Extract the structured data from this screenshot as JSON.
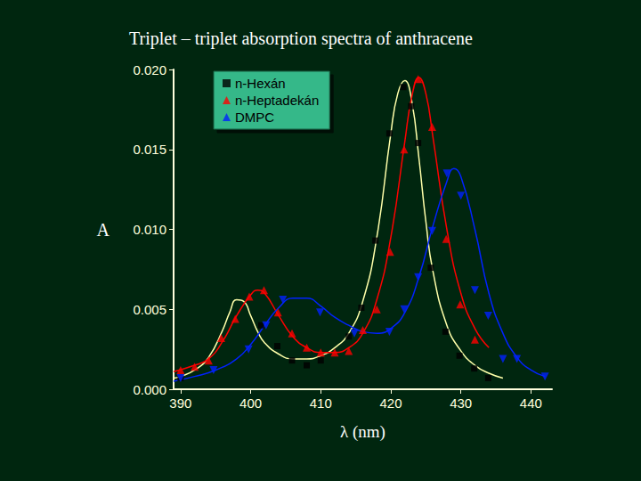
{
  "chart_data": {
    "type": "scatter",
    "title": "Triplet – triplet absorption spectra of anthracene",
    "x_label": "λ (nm)",
    "y_label": "A",
    "xlim": [
      389,
      443
    ],
    "xticks": [
      390,
      400,
      410,
      420,
      430,
      440
    ],
    "ylim": [
      0,
      0.02
    ],
    "yticks": [
      {
        "value": 0,
        "label": "0.000"
      },
      {
        "value": 0.005,
        "label": "0.005"
      },
      {
        "value": 0.01,
        "label": "0.010"
      },
      {
        "value": 0.015,
        "label": "0.015"
      },
      {
        "value": 0.02,
        "label": "0.020"
      }
    ],
    "grid": false,
    "legend": "top",
    "series": [
      {
        "name": "n-Hexán",
        "color": "#000000",
        "marker": "square",
        "x": [
          390,
          401.5,
          403.8,
          405.9,
          408,
          410,
          414,
          415.8,
          417.8,
          419.8,
          421.8,
          422.9,
          423.9,
          425.7,
          427.8,
          429.8,
          431.9,
          433.9
        ],
        "values": [
          0.0007,
          0.004,
          0.0027,
          0.0018,
          0.0015,
          0.0018,
          0.0033,
          0.0051,
          0.0093,
          0.016,
          0.0189,
          0.0177,
          0.0154,
          0.0076,
          0.0036,
          0.0021,
          0.0013,
          0.0007
        ],
        "fit": {
          "color": "#ffffaa",
          "line_style": "solid",
          "x": [
            389,
            390,
            392,
            394,
            396,
            397,
            398,
            399,
            400,
            401,
            402,
            404,
            406,
            408,
            410,
            412,
            414,
            416,
            418,
            420,
            421,
            422,
            423,
            424,
            425,
            426,
            428,
            430,
            432,
            434,
            436
          ],
          "values": [
            0.0007,
            0.0008,
            0.0012,
            0.002,
            0.0037,
            0.0048,
            0.0056,
            0.0055,
            0.0046,
            0.0036,
            0.0029,
            0.0022,
            0.0019,
            0.0019,
            0.0021,
            0.0026,
            0.0035,
            0.0055,
            0.0095,
            0.016,
            0.0185,
            0.0193,
            0.018,
            0.0145,
            0.0105,
            0.0074,
            0.004,
            0.0024,
            0.0015,
            0.001,
            0.0007
          ]
        }
      },
      {
        "name": "n-Heptadekán",
        "color": "#ff0000",
        "marker": "triangle",
        "x": [
          390,
          392,
          394,
          395.8,
          397.8,
          399.8,
          401.9,
          403.9,
          405.9,
          408,
          410,
          412,
          414,
          416,
          418,
          419.9,
          421.9,
          423.9,
          425.9,
          427.9,
          429.9,
          432
        ],
        "values": [
          0.0012,
          0.0014,
          0.0018,
          0.0032,
          0.0044,
          0.0058,
          0.0062,
          0.0048,
          0.0035,
          0.0026,
          0.0023,
          0.0023,
          0.0024,
          0.0037,
          0.005,
          0.0086,
          0.015,
          0.0194,
          0.0164,
          0.0094,
          0.0053,
          0.0031
        ],
        "fit": {
          "color": "#ff0000",
          "line_style": "solid",
          "x": [
            389,
            392,
            394,
            396,
            398,
            400,
            401,
            402,
            404,
            406,
            408,
            410,
            412,
            414,
            416,
            418,
            420,
            422,
            423,
            424,
            425,
            426,
            428,
            430,
            432,
            434
          ],
          "values": [
            0.0011,
            0.0015,
            0.0019,
            0.003,
            0.0046,
            0.0059,
            0.0062,
            0.006,
            0.0046,
            0.0033,
            0.0026,
            0.0023,
            0.0023,
            0.0026,
            0.0035,
            0.0056,
            0.0095,
            0.0155,
            0.0183,
            0.0195,
            0.0185,
            0.0158,
            0.01,
            0.006,
            0.0038,
            0.0026
          ]
        }
      },
      {
        "name": "DMPC",
        "color": "#0022ff",
        "marker": "triangle-down",
        "x": [
          390,
          394.7,
          399.7,
          402.2,
          404.6,
          409.9,
          414.8,
          419.8,
          421.9,
          423.9,
          425.9,
          428,
          430,
          432,
          433.9,
          436,
          438,
          442
        ],
        "values": [
          0.0007,
          0.0012,
          0.0025,
          0.004,
          0.0056,
          0.0048,
          0.0035,
          0.0036,
          0.005,
          0.007,
          0.0099,
          0.0135,
          0.0121,
          0.0062,
          0.0046,
          0.0019,
          0.0019,
          0.0008
        ],
        "fit": {
          "color": "#0022ff",
          "line_style": "solid",
          "x": [
            389,
            392,
            395,
            398,
            400,
            402,
            404,
            406,
            408,
            410,
            412,
            414,
            416,
            418,
            420,
            422,
            424,
            426,
            428,
            429,
            430,
            432,
            434,
            436,
            438,
            440,
            442
          ],
          "values": [
            0.0005,
            0.0008,
            0.0012,
            0.0019,
            0.0028,
            0.004,
            0.0051,
            0.0057,
            0.0057,
            0.0052,
            0.0045,
            0.004,
            0.0036,
            0.0035,
            0.0038,
            0.0048,
            0.007,
            0.0102,
            0.013,
            0.0138,
            0.0133,
            0.01,
            0.006,
            0.0035,
            0.002,
            0.0012,
            0.0008
          ]
        }
      }
    ]
  }
}
